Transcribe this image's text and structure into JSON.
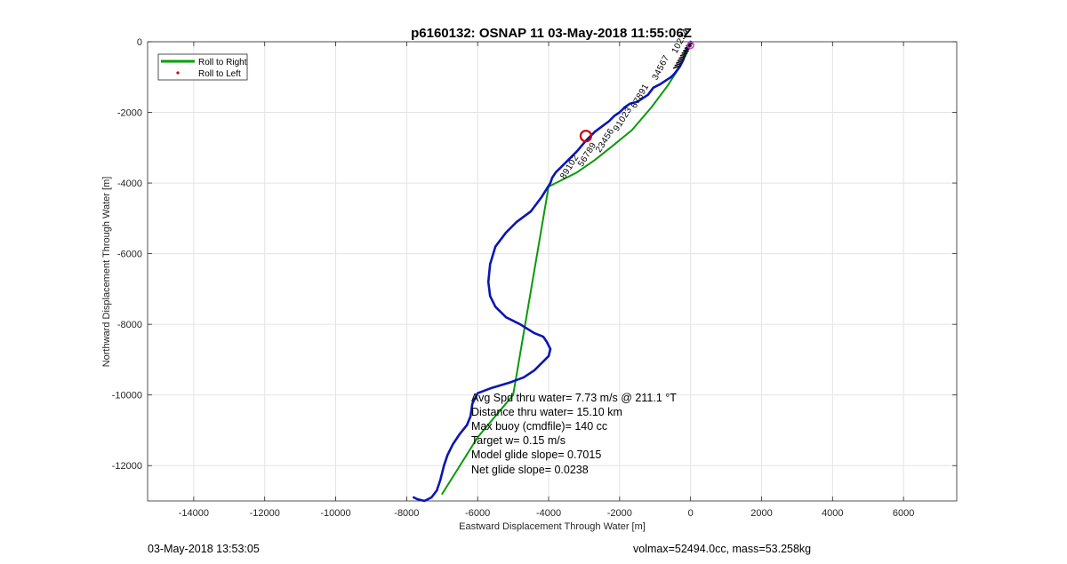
{
  "chart_data": {
    "type": "line",
    "title": "p6160132: OSNAP 11 03-May-2018 11:55:06Z",
    "xlabel": "Eastward Displacement Through Water [m]",
    "ylabel": "Northward Displacement Through Water [m]",
    "xlim": [
      -15300,
      7500
    ],
    "ylim": [
      -13000,
      0
    ],
    "xticks": [
      -14000,
      -12000,
      -10000,
      -8000,
      -6000,
      -4000,
      -2000,
      0,
      2000,
      4000,
      6000
    ],
    "yticks": [
      0,
      -2000,
      -4000,
      -6000,
      -8000,
      -10000,
      -12000
    ],
    "xtick_labels": [
      "-14000",
      "-12000",
      "-10000",
      "-8000",
      "-6000",
      "-4000",
      "-2000",
      "0",
      "2000",
      "4000",
      "6000"
    ],
    "ytick_labels": [
      "0",
      "-2000",
      "-4000",
      "-6000",
      "-8000",
      "-10000",
      "-12000"
    ],
    "grid": true,
    "legend": {
      "placement": "top-left",
      "entries": [
        {
          "label": "Roll to Right",
          "color": "#00a000",
          "style": "line"
        },
        {
          "label": "Roll to Left",
          "color": "#cc0000",
          "style": "dot"
        }
      ]
    },
    "series": [
      {
        "name": "Roll to Right",
        "color": "#0a9a0a",
        "x": [
          0,
          -100,
          -300,
          -650,
          -1100,
          -1650,
          -2200,
          -2700,
          -3200,
          -3600,
          -4000,
          -5000,
          -6000,
          -7000
        ],
        "y": [
          0,
          -300,
          -700,
          -1250,
          -1850,
          -2500,
          -2950,
          -3350,
          -3700,
          -3900,
          -4100,
          -10000,
          -11200,
          -12800
        ]
      },
      {
        "color": "#0a15b5",
        "x": [
          0,
          -80,
          -150,
          -200,
          -300,
          -450,
          -550,
          -700,
          -850,
          -950,
          -1050,
          -1200,
          -1500,
          -1700,
          -1850,
          -2000,
          -2150,
          -2300,
          -2500,
          -2700,
          -2950,
          -3200,
          -3450,
          -3650,
          -3800,
          -3900,
          -3950,
          -4200,
          -4500,
          -4900,
          -5200,
          -5500,
          -5650,
          -5700,
          -5650,
          -5500,
          -5200,
          -4800,
          -4400,
          -4150,
          -4050,
          -3950,
          -4000,
          -4200,
          -4400,
          -4700,
          -5100,
          -5600,
          -6000,
          -6150,
          -6200,
          -6300,
          -6500,
          -6700,
          -6850,
          -6950,
          -7050,
          -7150,
          -7300,
          -7500,
          -7700,
          -7800
        ],
        "y": [
          0,
          -150,
          -300,
          -500,
          -700,
          -900,
          -1000,
          -1100,
          -1200,
          -1250,
          -1300,
          -1500,
          -1700,
          -1750,
          -1850,
          -2000,
          -2100,
          -2250,
          -2400,
          -2550,
          -2800,
          -3100,
          -3350,
          -3550,
          -3700,
          -3850,
          -4000,
          -4400,
          -4800,
          -5100,
          -5400,
          -5800,
          -6300,
          -6800,
          -7200,
          -7500,
          -7800,
          -8000,
          -8250,
          -8350,
          -8500,
          -8700,
          -8900,
          -9100,
          -9300,
          -9500,
          -9650,
          -9800,
          -9950,
          -10250,
          -10600,
          -10850,
          -11100,
          -11400,
          -11700,
          -12000,
          -12400,
          -12700,
          -12900,
          -13000,
          -12950,
          -12900
        ]
      }
    ],
    "markers": [
      {
        "type": "circle",
        "x": -2950,
        "y": -2670,
        "color": "#cc0000"
      },
      {
        "type": "circle",
        "x": 0,
        "y": -100,
        "color": "#cc33cc"
      }
    ],
    "waypoint_label_positions": [
      {
        "x": -400,
        "y": -350,
        "angle": -62
      },
      {
        "x": -950,
        "y": -1100,
        "angle": -62
      },
      {
        "x": -1550,
        "y": -1900,
        "angle": -60
      },
      {
        "x": -2050,
        "y": -2550,
        "angle": -58
      },
      {
        "x": -2550,
        "y": -3150,
        "angle": -58
      },
      {
        "x": -3050,
        "y": -3550,
        "angle": -58
      },
      {
        "x": -3550,
        "y": -3900,
        "angle": -58
      }
    ],
    "annotations": [
      "Avg Spd thru water=  7.73 m/s @ 211.1 °T",
      "Distance thru water= 15.10 km",
      "Max buoy (cmdfile)= 140 cc",
      "Target w= 0.15 m/s",
      "Model glide slope= 0.7015",
      "Net glide slope= 0.0238"
    ]
  },
  "footer": {
    "left": "03-May-2018 13:53:05",
    "right": "volmax=52494.0cc, mass=53.258kg"
  }
}
